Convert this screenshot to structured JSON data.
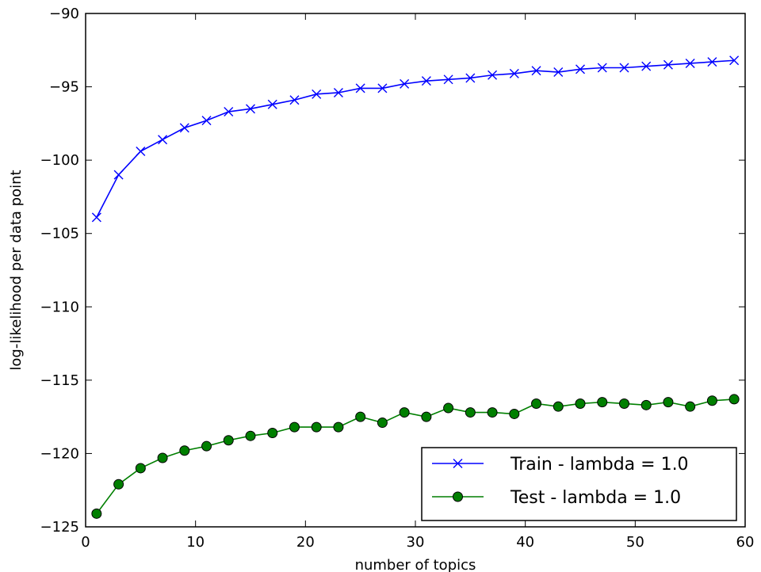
{
  "chart_data": {
    "type": "line",
    "title": "",
    "xlabel": "number of topics",
    "ylabel": "log-likelihood per data point",
    "xlim": [
      0,
      60
    ],
    "ylim": [
      -125,
      -90
    ],
    "xticks": [
      0,
      10,
      20,
      30,
      40,
      50,
      60
    ],
    "yticks": [
      -125,
      -120,
      -115,
      -110,
      -105,
      -100,
      -95,
      -90
    ],
    "xtick_labels": [
      "0",
      "10",
      "20",
      "30",
      "40",
      "50",
      "60"
    ],
    "ytick_labels": [
      "−125",
      "−120",
      "−115",
      "−110",
      "−105",
      "−100",
      "−95",
      "−90"
    ],
    "grid": false,
    "legend_position": "lower-right",
    "x": [
      1,
      3,
      5,
      7,
      9,
      11,
      13,
      15,
      17,
      19,
      21,
      23,
      25,
      27,
      29,
      31,
      33,
      35,
      37,
      39,
      41,
      43,
      45,
      47,
      49,
      51,
      53,
      55,
      57,
      59
    ],
    "series": [
      {
        "name": "Train - lambda = 1.0",
        "color": "#0000ff",
        "marker": "x",
        "values": [
          -103.9,
          -101.0,
          -99.4,
          -98.6,
          -97.8,
          -97.3,
          -96.7,
          -96.5,
          -96.2,
          -95.9,
          -95.5,
          -95.4,
          -95.1,
          -95.1,
          -94.8,
          -94.6,
          -94.5,
          -94.4,
          -94.2,
          -94.1,
          -93.9,
          -94.0,
          -93.8,
          -93.7,
          -93.7,
          -93.6,
          -93.5,
          -93.4,
          -93.3,
          -93.2
        ]
      },
      {
        "name": "Test - lambda = 1.0",
        "color": "#007f00",
        "marker": "o",
        "values": [
          -124.1,
          -122.1,
          -121.0,
          -120.3,
          -119.8,
          -119.5,
          -119.1,
          -118.8,
          -118.6,
          -118.2,
          -118.2,
          -118.2,
          -117.5,
          -117.9,
          -117.2,
          -117.5,
          -116.9,
          -117.2,
          -117.2,
          -117.3,
          -116.6,
          -116.8,
          -116.6,
          -116.5,
          -116.6,
          -116.7,
          -116.5,
          -116.8,
          -116.4,
          -116.3
        ]
      }
    ]
  }
}
